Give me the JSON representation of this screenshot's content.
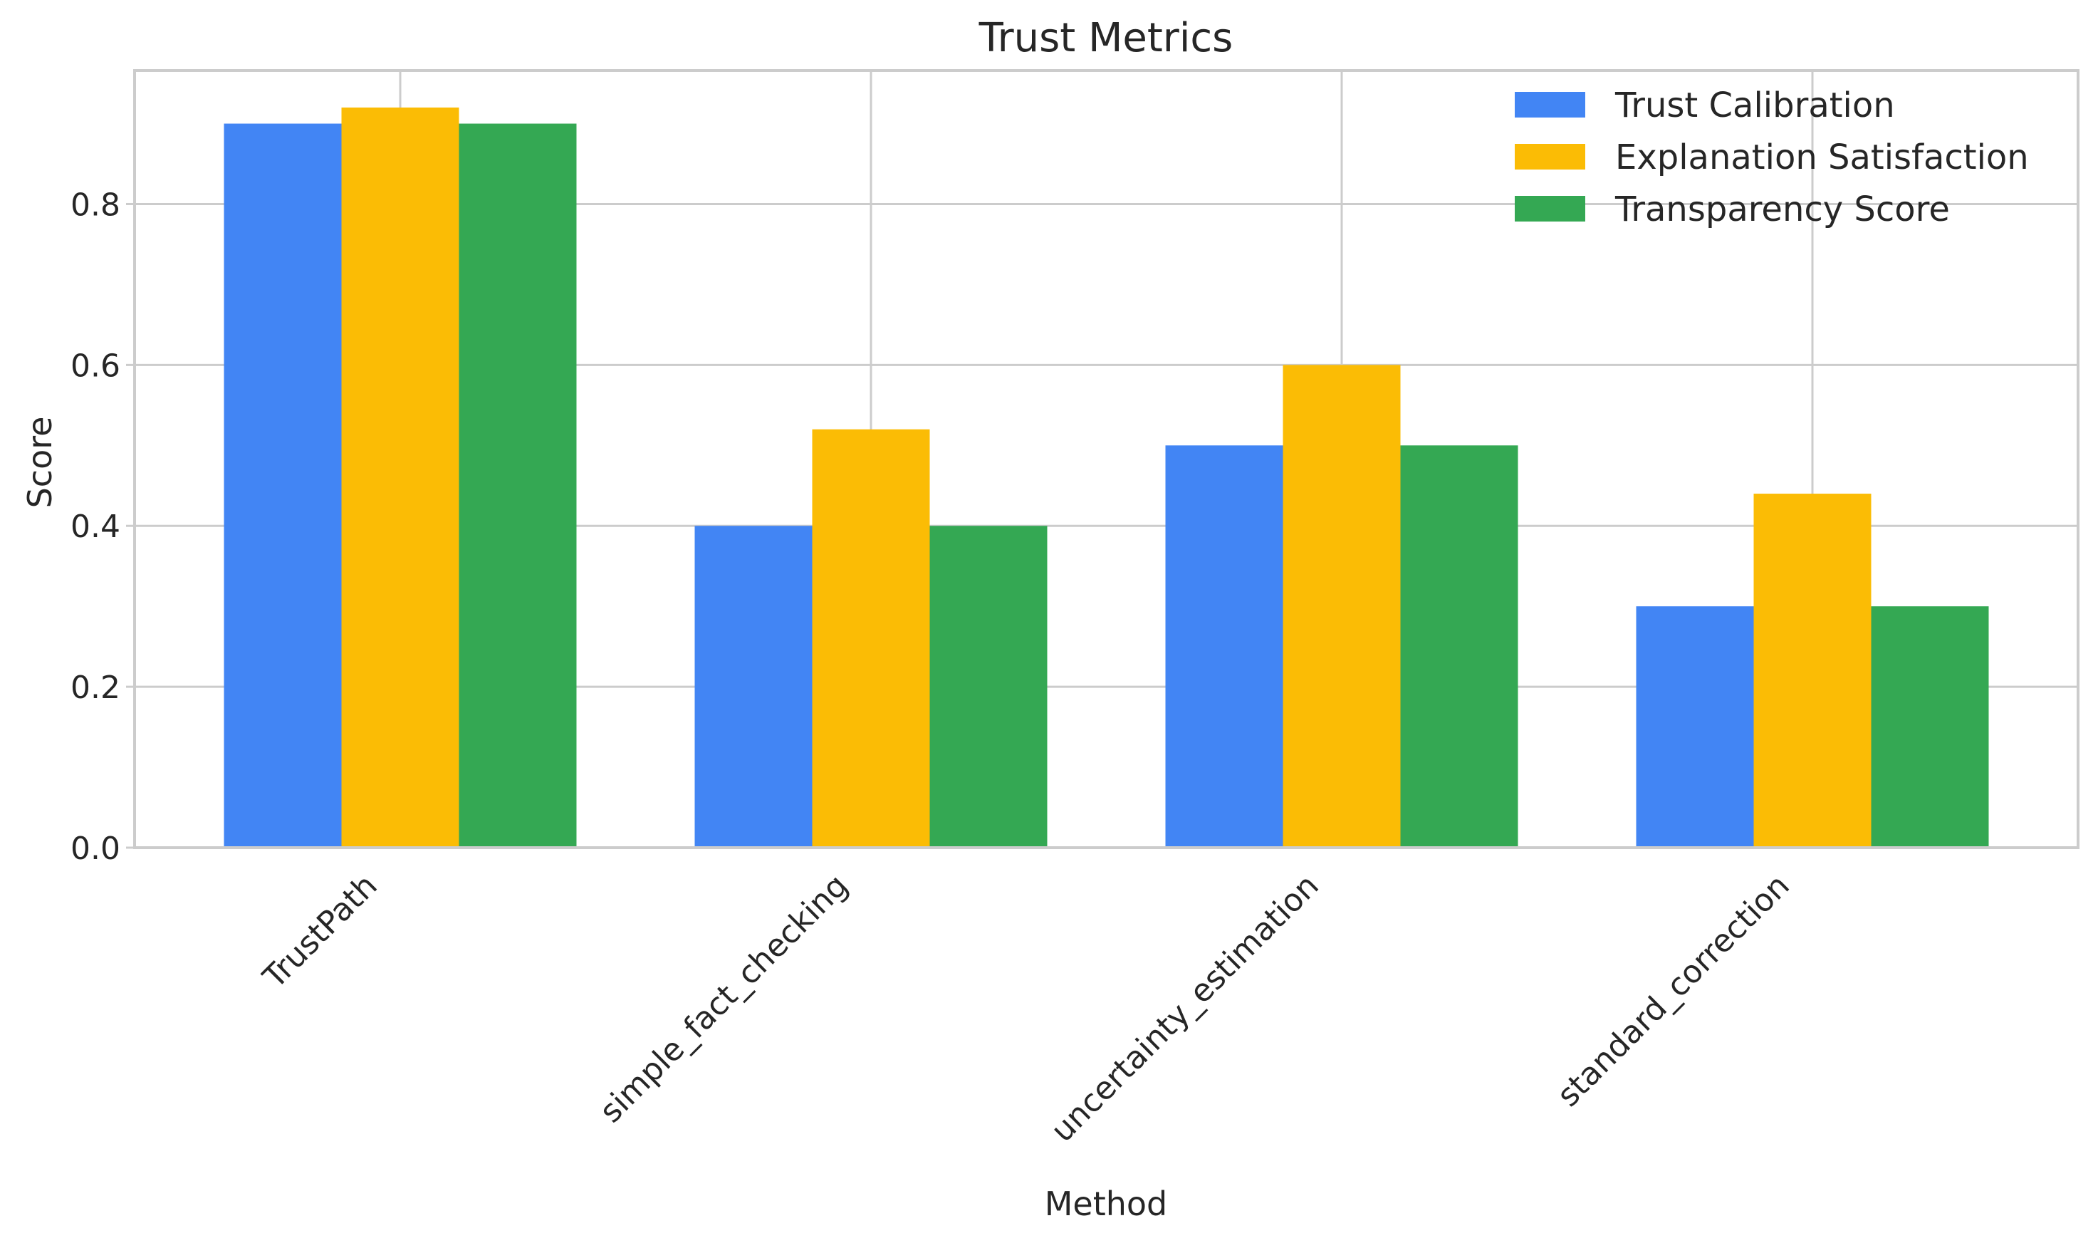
{
  "chart_data": {
    "type": "bar",
    "title": "Trust Metrics",
    "xlabel": "Method",
    "ylabel": "Score",
    "categories": [
      "TrustPath",
      "simple_fact_checking",
      "uncertainty_estimation",
      "standard_correction"
    ],
    "series": [
      {
        "name": "Trust Calibration",
        "color": "#4285f4",
        "values": [
          0.9,
          0.4,
          0.5,
          0.3
        ]
      },
      {
        "name": "Explanation Satisfaction",
        "color": "#fbbc05",
        "values": [
          0.92,
          0.52,
          0.6,
          0.44
        ]
      },
      {
        "name": "Transparency Score",
        "color": "#34a853",
        "values": [
          0.9,
          0.4,
          0.5,
          0.3
        ]
      }
    ],
    "ylim": [
      0,
      0.966
    ],
    "yticks": [
      "0.0",
      "0.2",
      "0.4",
      "0.6",
      "0.8"
    ],
    "grid": true,
    "legend_position": "top-right"
  }
}
